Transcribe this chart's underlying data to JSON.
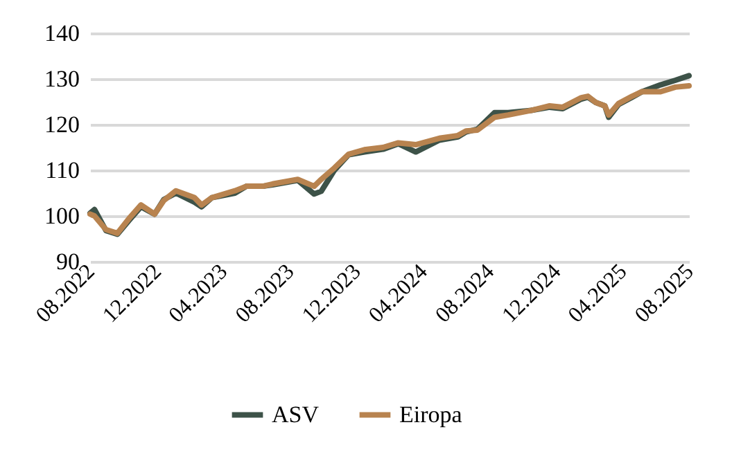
{
  "chart_data": {
    "type": "line",
    "x": [
      "2022-08-01",
      "2022-08-09",
      "2022-08-30",
      "2022-09-20",
      "2022-10-11",
      "2022-11-02",
      "2022-11-27",
      "2022-12-14",
      "2023-01-05",
      "2023-02-08",
      "2023-02-21",
      "2023-03-12",
      "2023-04-23",
      "2023-05-14",
      "2023-06-13",
      "2023-07-01",
      "2023-08-16",
      "2023-09-15",
      "2023-09-28",
      "2023-10-22",
      "2023-11-17",
      "2023-12-16",
      "2024-01-19",
      "2024-02-16",
      "2024-03-19",
      "2024-05-01",
      "2024-06-04",
      "2024-06-19",
      "2024-07-10",
      "2024-08-10",
      "2024-09-04",
      "2024-10-16",
      "2024-11-19",
      "2024-12-13",
      "2025-01-16",
      "2025-01-28",
      "2025-02-12",
      "2025-02-28",
      "2025-03-07",
      "2025-03-25",
      "2025-04-19",
      "2025-05-07",
      "2025-06-10",
      "2025-07-07",
      "2025-08-01"
    ],
    "series": [
      {
        "name": "ASV",
        "color": "#3d5248",
        "values": [
          100.6,
          101.4,
          96.8,
          96,
          99,
          102,
          100.4,
          103.6,
          105,
          103,
          102,
          104,
          105,
          106.5,
          106.5,
          106.8,
          107.8,
          104.8,
          105.4,
          110,
          113.4,
          114,
          114.6,
          115.8,
          114,
          116.6,
          117.3,
          118.4,
          119,
          122.6,
          122.6,
          123.1,
          123.8,
          123.5,
          125.6,
          126,
          124.8,
          124.1,
          121.6,
          124.4,
          126,
          127.2,
          128.7,
          129.7,
          130.7
        ]
      },
      {
        "name": "Eiropa",
        "color": "#b8834f",
        "values": [
          100.4,
          100,
          97,
          96.2,
          99.4,
          102.4,
          100.4,
          103.4,
          105.5,
          104,
          102.4,
          104,
          105.5,
          106.5,
          106.5,
          107,
          108,
          106.5,
          108,
          110.5,
          113.5,
          114.5,
          115,
          116,
          115.6,
          117,
          117.6,
          118.6,
          118.8,
          121.6,
          122.1,
          123.1,
          124.1,
          123.8,
          125.9,
          126.2,
          124.8,
          124.1,
          122.1,
          124.6,
          126.2,
          127.2,
          127.2,
          128.2,
          128.5
        ]
      }
    ],
    "xlim": [
      "2022-08-01",
      "2025-08-01"
    ],
    "xticks": [
      {
        "value": "2022-08-01",
        "label": "08.2022"
      },
      {
        "value": "2022-12-01",
        "label": "12.2022"
      },
      {
        "value": "2023-04-01",
        "label": "04.2023"
      },
      {
        "value": "2023-08-01",
        "label": "08.2023"
      },
      {
        "value": "2023-12-01",
        "label": "12.2023"
      },
      {
        "value": "2024-04-01",
        "label": "04.2024"
      },
      {
        "value": "2024-08-01",
        "label": "08.2024"
      },
      {
        "value": "2024-12-01",
        "label": "12.2024"
      },
      {
        "value": "2025-04-01",
        "label": "04.2025"
      },
      {
        "value": "2025-08-01",
        "label": "08.2025"
      }
    ],
    "ylim": [
      90,
      140
    ],
    "yticks": [
      90,
      100,
      110,
      120,
      130,
      140
    ],
    "grid": "y",
    "legend": "bottom",
    "marker": "none",
    "line_style": "solid"
  }
}
